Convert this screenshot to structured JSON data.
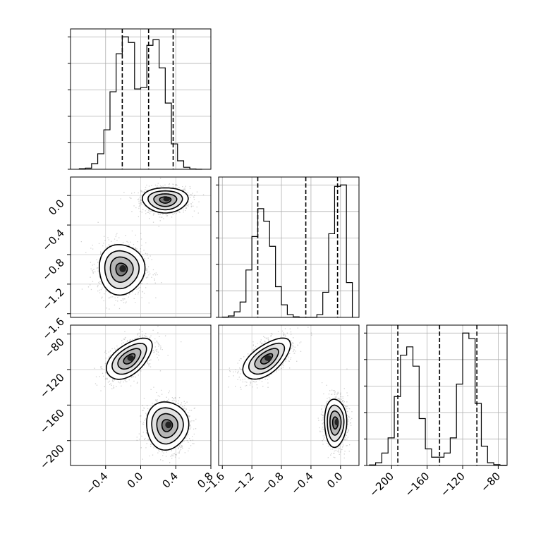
{
  "chart_data": {
    "type": "corner",
    "parameters": [
      {
        "range": [
          -0.8,
          0.8
        ],
        "ticks": [
          "−0.4",
          "0.0",
          "0.4",
          "0.8"
        ],
        "tick_values": [
          -0.4,
          0.0,
          0.4,
          0.8
        ]
      },
      {
        "range": [
          -1.65,
          0.25
        ],
        "ticks": [
          "−1.6",
          "−1.2",
          "−0.8",
          "−0.4",
          "0.0"
        ],
        "tick_values": [
          -1.6,
          -1.2,
          -0.8,
          -0.4,
          0.0
        ]
      },
      {
        "range": [
          -228,
          -70
        ],
        "ticks": [
          "−200",
          "−160",
          "−120",
          "−80"
        ],
        "tick_values": [
          -200,
          -160,
          -120,
          -80
        ]
      }
    ],
    "histograms": [
      {
        "param": 0,
        "bin_edges": [
          -0.7,
          -0.63,
          -0.56,
          -0.49,
          -0.42,
          -0.35,
          -0.28,
          -0.21,
          -0.14,
          -0.07,
          0.0,
          0.07,
          0.14,
          0.21,
          0.28,
          0.35,
          0.42,
          0.49,
          0.56,
          0.63,
          0.7
        ],
        "counts": [
          2,
          4,
          20,
          55,
          140,
          275,
          410,
          470,
          450,
          285,
          290,
          440,
          460,
          360,
          235,
          90,
          30,
          7,
          1,
          0
        ],
        "quantiles": [
          -0.21,
          0.09,
          0.37
        ]
      },
      {
        "param": 1,
        "bin_edges": [
          -1.6,
          -1.52,
          -1.44,
          -1.36,
          -1.28,
          -1.2,
          -1.12,
          -1.04,
          -0.96,
          -0.88,
          -0.8,
          -0.72,
          -0.64,
          -0.56,
          -0.48,
          -0.4,
          -0.32,
          -0.24,
          -0.16,
          -0.08,
          0.0,
          0.08,
          0.16
        ],
        "counts": [
          1,
          5,
          20,
          55,
          170,
          290,
          390,
          345,
          255,
          110,
          45,
          10,
          2,
          0,
          0,
          0,
          10,
          90,
          300,
          470,
          475,
          125
        ],
        "quantiles": [
          -1.12,
          -0.47,
          -0.04
        ]
      },
      {
        "param": 2,
        "bin_edges": [
          -225,
          -218,
          -211,
          -204,
          -197,
          -190,
          -183,
          -176,
          -169,
          -162,
          -155,
          -148,
          -141,
          -134,
          -127,
          -120,
          -113,
          -106,
          -99,
          -92,
          -85,
          -78,
          -71
        ],
        "counts": [
          2,
          10,
          45,
          100,
          250,
          400,
          430,
          360,
          170,
          60,
          30,
          30,
          45,
          100,
          295,
          480,
          460,
          225,
          70,
          10,
          3,
          1
        ],
        "quantiles": [
          -193,
          -146,
          -104
        ]
      }
    ],
    "joint": [
      {
        "x_param": 0,
        "y_param": 1,
        "modes": [
          {
            "cx": 0.28,
            "cy": -0.06,
            "sx": 0.13,
            "sy": 0.085,
            "rho": 0.0
          },
          {
            "cx": -0.22,
            "cy": -1.0,
            "sx": 0.13,
            "sy": 0.17,
            "rho": 0.0
          }
        ]
      },
      {
        "x_param": 0,
        "y_param": 2,
        "modes": [
          {
            "cx": -0.13,
            "cy": -108,
            "sx": 0.13,
            "sy": 11.5,
            "rho": 0.55
          },
          {
            "cx": 0.3,
            "cy": -183,
            "sx": 0.12,
            "sy": 13.5,
            "rho": 0.0
          }
        ]
      },
      {
        "x_param": 1,
        "y_param": 2,
        "modes": [
          {
            "cx": -1.0,
            "cy": -108,
            "sx": 0.16,
            "sy": 11.5,
            "rho": 0.6
          },
          {
            "cx": -0.07,
            "cy": -180,
            "sx": 0.075,
            "sy": 13.5,
            "rho": 0.0
          }
        ]
      }
    ],
    "contour_levels_sigma": [
      0.5,
      1.0,
      1.5,
      2.0
    ],
    "grid": true,
    "title": "",
    "xlabel": "",
    "ylabel": ""
  }
}
